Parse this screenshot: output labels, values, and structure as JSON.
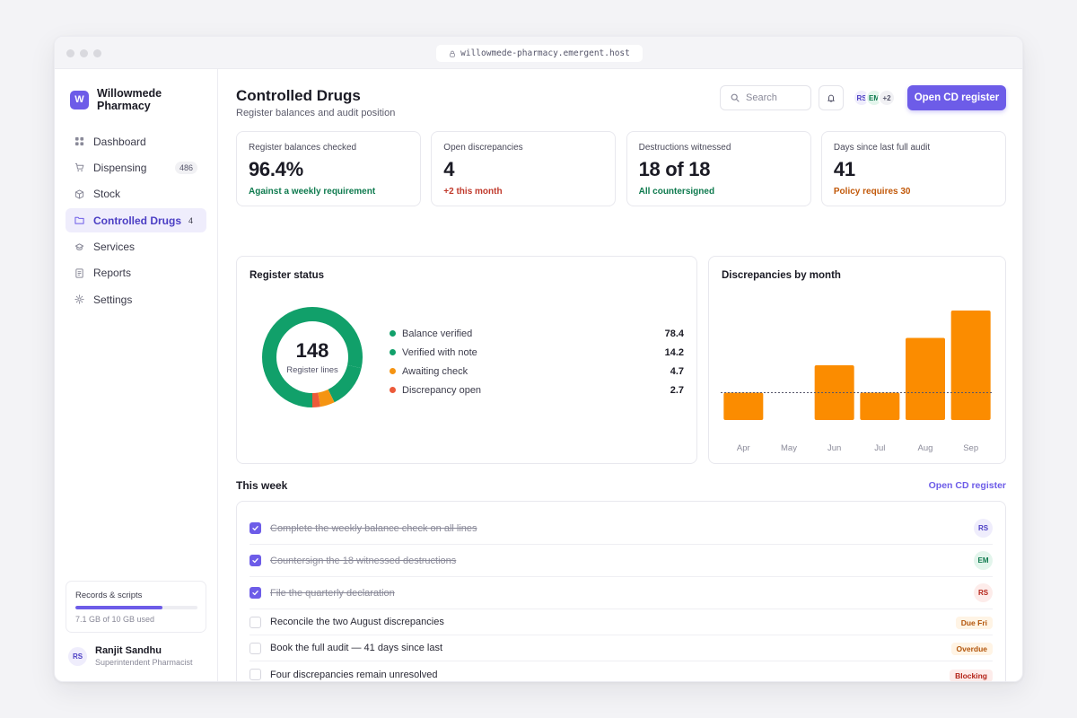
{
  "browser": {
    "url": "willowmede-pharmacy.emergent.host"
  },
  "brand": {
    "initial": "W",
    "name": "Willowmede Pharmacy"
  },
  "sidebar": {
    "items": [
      {
        "label": "Dashboard",
        "icon": "dashboard-icon"
      },
      {
        "label": "Dispensing",
        "icon": "cart-icon",
        "badge": "486"
      },
      {
        "label": "Stock",
        "icon": "box-icon"
      },
      {
        "label": "Controlled Drugs",
        "icon": "folder-icon",
        "badge": "4",
        "active": true
      },
      {
        "label": "Services",
        "icon": "services-icon"
      },
      {
        "label": "Reports",
        "icon": "report-icon"
      },
      {
        "label": "Settings",
        "icon": "gear-icon"
      }
    ],
    "storage": {
      "label": "Records & scripts",
      "used_text": "7.1 GB of 10 GB used",
      "fraction": 0.71
    },
    "user": {
      "initials": "RS",
      "name": "Ranjit Sandhu",
      "role": "Superintendent Pharmacist"
    }
  },
  "header": {
    "title": "Controlled Drugs",
    "subtitle": "Register balances and audit position",
    "search_placeholder": "Search",
    "team": [
      "RS",
      "EM"
    ],
    "team_more": "+2",
    "primary_button": "Open CD register"
  },
  "kpis": [
    {
      "label": "Register balances checked",
      "value": "96.4%",
      "note": "Against a weekly requirement",
      "note_color": "#0e7a4e"
    },
    {
      "label": "Open discrepancies",
      "value": "4",
      "note": "+2 this month",
      "note_color": "#c0392b"
    },
    {
      "label": "Destructions witnessed",
      "value": "18 of 18",
      "note": "All countersigned",
      "note_color": "#0e7a4e"
    },
    {
      "label": "Days since last full audit",
      "value": "41",
      "note": "Policy requires 30",
      "note_color": "#c2590a"
    }
  ],
  "register_status": {
    "title": "Register status",
    "total": "148",
    "total_label": "Register lines",
    "items": [
      {
        "label": "Balance verified",
        "value": "78.4",
        "color": "#11a06a"
      },
      {
        "label": "Verified with note",
        "value": "14.2",
        "color": "#11a06a"
      },
      {
        "label": "Awaiting check",
        "value": "4.7",
        "color": "#f59412"
      },
      {
        "label": "Discrepancy open",
        "value": "2.7",
        "color": "#ec5a3a"
      }
    ]
  },
  "chart_data": {
    "type": "bar",
    "title": "Discrepancies by month",
    "categories": [
      "Apr",
      "May",
      "Jun",
      "Jul",
      "Aug",
      "Sep"
    ],
    "values": [
      1,
      0,
      2,
      1,
      3,
      4
    ],
    "ylim": [
      0,
      4
    ],
    "reference_line": 1,
    "grid": false,
    "bar_color": "#fb8c00"
  },
  "week": {
    "title": "This week",
    "link": "Open CD register",
    "tasks": [
      {
        "text": "Complete the weekly balance check on all lines",
        "done": true,
        "assignee": "RS"
      },
      {
        "text": "Countersign the 18 witnessed destructions",
        "done": true,
        "assignee": "EM"
      },
      {
        "text": "File the quarterly declaration",
        "done": true,
        "assignee": "RS"
      },
      {
        "text": "Reconcile the two August discrepancies",
        "done": false,
        "tag": "Due Fri"
      },
      {
        "text": "Book the full audit — 41 days since last",
        "done": false,
        "tag": "Overdue"
      },
      {
        "text": "Four discrepancies remain unresolved",
        "done": false,
        "tag": "Blocking"
      }
    ]
  }
}
